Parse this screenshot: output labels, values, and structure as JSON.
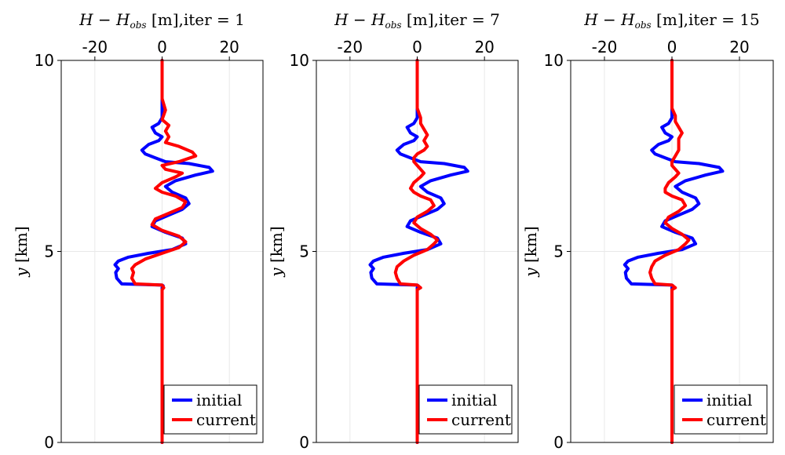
{
  "chart_data": [
    {
      "type": "line",
      "title_prefix": "H − H",
      "title_subscript": "obs",
      "title_suffix": " [m],iter = 1",
      "ylabel_var": "y",
      "ylabel_unit": " [km]",
      "xticks": [
        -20,
        0,
        20
      ],
      "xtick_labels": [
        "-20",
        "0",
        "20"
      ],
      "yticks": [
        0,
        5,
        10
      ],
      "ytick_labels": [
        "0",
        "5",
        "10"
      ],
      "xlim": [
        -30,
        30
      ],
      "ylim": [
        0,
        10
      ],
      "grid": true,
      "legend_position": "bottom-right",
      "series": [
        {
          "name": "initial",
          "color": "#0000ff",
          "x": [
            0,
            0,
            0,
            0,
            0,
            0.3,
            0,
            -12,
            -13.5,
            -13.8,
            -13,
            -14,
            -13,
            -10,
            -4,
            3,
            7,
            6,
            1,
            -3,
            -2,
            2,
            6,
            8,
            7,
            3,
            1,
            4,
            10,
            15,
            14,
            8,
            1,
            -2,
            -5,
            -6,
            -4,
            -1,
            0,
            -2,
            -3,
            -1,
            0,
            0,
            0,
            0
          ],
          "y": [
            0,
            2,
            3,
            4,
            4.05,
            4.1,
            4.12,
            4.15,
            4.3,
            4.45,
            4.55,
            4.65,
            4.75,
            4.85,
            4.95,
            5.05,
            5.2,
            5.35,
            5.5,
            5.65,
            5.8,
            5.95,
            6.1,
            6.25,
            6.4,
            6.55,
            6.7,
            6.85,
            7.0,
            7.1,
            7.2,
            7.3,
            7.35,
            7.45,
            7.55,
            7.65,
            7.8,
            7.9,
            8.0,
            8.1,
            8.25,
            8.35,
            8.5,
            8.8,
            9.0,
            10
          ]
        },
        {
          "name": "current",
          "color": "#ff0000",
          "x": [
            0,
            0,
            0,
            0,
            0.5,
            0,
            -8,
            -9,
            -8.5,
            -9,
            -8,
            -5,
            0,
            5,
            7,
            5,
            0,
            -3,
            -2,
            2,
            6,
            7,
            4,
            0,
            -2,
            0,
            4,
            6,
            1,
            0,
            5,
            10,
            9,
            5,
            1,
            2,
            1,
            2,
            0,
            1,
            0,
            0
          ],
          "y": [
            0,
            2,
            3,
            4,
            4.05,
            4.12,
            4.15,
            4.3,
            4.45,
            4.55,
            4.65,
            4.8,
            4.95,
            5.1,
            5.25,
            5.4,
            5.55,
            5.7,
            5.85,
            6.0,
            6.15,
            6.3,
            6.45,
            6.55,
            6.65,
            6.8,
            6.95,
            7.05,
            7.15,
            7.25,
            7.35,
            7.5,
            7.6,
            7.75,
            7.85,
            8.0,
            8.15,
            8.3,
            8.45,
            8.7,
            9.0,
            10
          ]
        }
      ]
    },
    {
      "type": "line",
      "title_prefix": "H − H",
      "title_subscript": "obs",
      "title_suffix": " [m],iter = 7",
      "ylabel_var": "y",
      "ylabel_unit": " [km]",
      "xticks": [
        -20,
        0,
        20
      ],
      "xtick_labels": [
        "-20",
        "0",
        "20"
      ],
      "yticks": [
        0,
        5,
        10
      ],
      "ytick_labels": [
        "0",
        "5",
        "10"
      ],
      "xlim": [
        -30,
        30
      ],
      "ylim": [
        0,
        10
      ],
      "grid": true,
      "legend_position": "bottom-right",
      "series": [
        {
          "name": "initial",
          "color": "#0000ff",
          "x": [
            0,
            0,
            0,
            0,
            0,
            0.3,
            0,
            -12,
            -13.5,
            -13.8,
            -13,
            -14,
            -13,
            -10,
            -4,
            3,
            7,
            6,
            1,
            -3,
            -2,
            2,
            6,
            8,
            7,
            3,
            1,
            4,
            10,
            15,
            14,
            8,
            1,
            -2,
            -5,
            -6,
            -4,
            -1,
            0,
            -2,
            -3,
            -1,
            0,
            0,
            0,
            0
          ],
          "y": [
            0,
            2,
            3,
            4,
            4.05,
            4.1,
            4.12,
            4.15,
            4.3,
            4.45,
            4.55,
            4.65,
            4.75,
            4.85,
            4.95,
            5.05,
            5.2,
            5.35,
            5.5,
            5.65,
            5.8,
            5.95,
            6.1,
            6.25,
            6.4,
            6.55,
            6.7,
            6.85,
            7.0,
            7.1,
            7.2,
            7.3,
            7.35,
            7.45,
            7.55,
            7.65,
            7.8,
            7.9,
            8.0,
            8.1,
            8.25,
            8.35,
            8.5,
            8.8,
            9.0,
            10
          ]
        },
        {
          "name": "current",
          "color": "#ff0000",
          "x": [
            0,
            0,
            0,
            0,
            1,
            0,
            -5,
            -6,
            -6.5,
            -6,
            -4,
            -1,
            3,
            5,
            6,
            4,
            1,
            -1,
            0,
            3,
            5,
            4,
            1,
            -1,
            -2,
            -1,
            1,
            2,
            1,
            0,
            -1,
            -1,
            0,
            2,
            3,
            2,
            3,
            2,
            1,
            1,
            0,
            0,
            0
          ],
          "y": [
            0,
            2,
            3,
            4,
            4.05,
            4.12,
            4.15,
            4.3,
            4.45,
            4.6,
            4.75,
            4.9,
            5.05,
            5.2,
            5.3,
            5.45,
            5.6,
            5.75,
            5.9,
            6.05,
            6.2,
            6.35,
            6.45,
            6.55,
            6.65,
            6.8,
            6.95,
            7.05,
            7.15,
            7.25,
            7.35,
            7.45,
            7.55,
            7.65,
            7.75,
            7.9,
            8.05,
            8.2,
            8.35,
            8.5,
            8.75,
            9.0,
            10
          ]
        }
      ]
    },
    {
      "type": "line",
      "title_prefix": "H − H",
      "title_subscript": "obs",
      "title_suffix": " [m],iter = 15",
      "ylabel_var": "y",
      "ylabel_unit": " [km]",
      "xticks": [
        -20,
        0,
        20
      ],
      "xtick_labels": [
        "-20",
        "0",
        "20"
      ],
      "yticks": [
        0,
        5,
        10
      ],
      "ytick_labels": [
        "0",
        "5",
        "10"
      ],
      "xlim": [
        -30,
        30
      ],
      "ylim": [
        0,
        10
      ],
      "grid": true,
      "legend_position": "bottom-right",
      "series": [
        {
          "name": "initial",
          "color": "#0000ff",
          "x": [
            0,
            0,
            0,
            0,
            0,
            0.3,
            0,
            -12,
            -13.5,
            -13.8,
            -13,
            -14,
            -13,
            -10,
            -4,
            3,
            7,
            6,
            1,
            -3,
            -2,
            2,
            6,
            8,
            7,
            3,
            1,
            4,
            10,
            15,
            14,
            8,
            1,
            -2,
            -5,
            -6,
            -4,
            -1,
            0,
            -2,
            -3,
            -1,
            0,
            0,
            0,
            0
          ],
          "y": [
            0,
            2,
            3,
            4,
            4.05,
            4.1,
            4.12,
            4.15,
            4.3,
            4.45,
            4.55,
            4.65,
            4.75,
            4.85,
            4.95,
            5.05,
            5.2,
            5.35,
            5.5,
            5.65,
            5.8,
            5.95,
            6.1,
            6.25,
            6.4,
            6.55,
            6.7,
            6.85,
            7.0,
            7.1,
            7.2,
            7.3,
            7.35,
            7.45,
            7.55,
            7.65,
            7.8,
            7.9,
            8.0,
            8.1,
            8.25,
            8.35,
            8.5,
            8.8,
            9.0,
            10
          ]
        },
        {
          "name": "current",
          "color": "#ff0000",
          "x": [
            0,
            0,
            0,
            0,
            1,
            0,
            -5,
            -6,
            -6.5,
            -6,
            -5,
            -2,
            2,
            4,
            5,
            3,
            0,
            -2,
            -1,
            2,
            4,
            3,
            0,
            -2,
            -2,
            -1,
            1,
            2,
            1,
            0,
            0,
            1,
            2,
            2,
            2,
            3,
            2,
            1,
            1,
            0,
            0,
            0
          ],
          "y": [
            0,
            2,
            3,
            4,
            4.05,
            4.12,
            4.15,
            4.3,
            4.45,
            4.6,
            4.75,
            4.9,
            5.05,
            5.2,
            5.3,
            5.45,
            5.6,
            5.75,
            5.9,
            6.05,
            6.2,
            6.35,
            6.45,
            6.55,
            6.65,
            6.8,
            6.95,
            7.05,
            7.15,
            7.25,
            7.35,
            7.5,
            7.65,
            7.8,
            7.95,
            8.1,
            8.25,
            8.4,
            8.55,
            8.75,
            9.0,
            10
          ]
        }
      ]
    }
  ]
}
